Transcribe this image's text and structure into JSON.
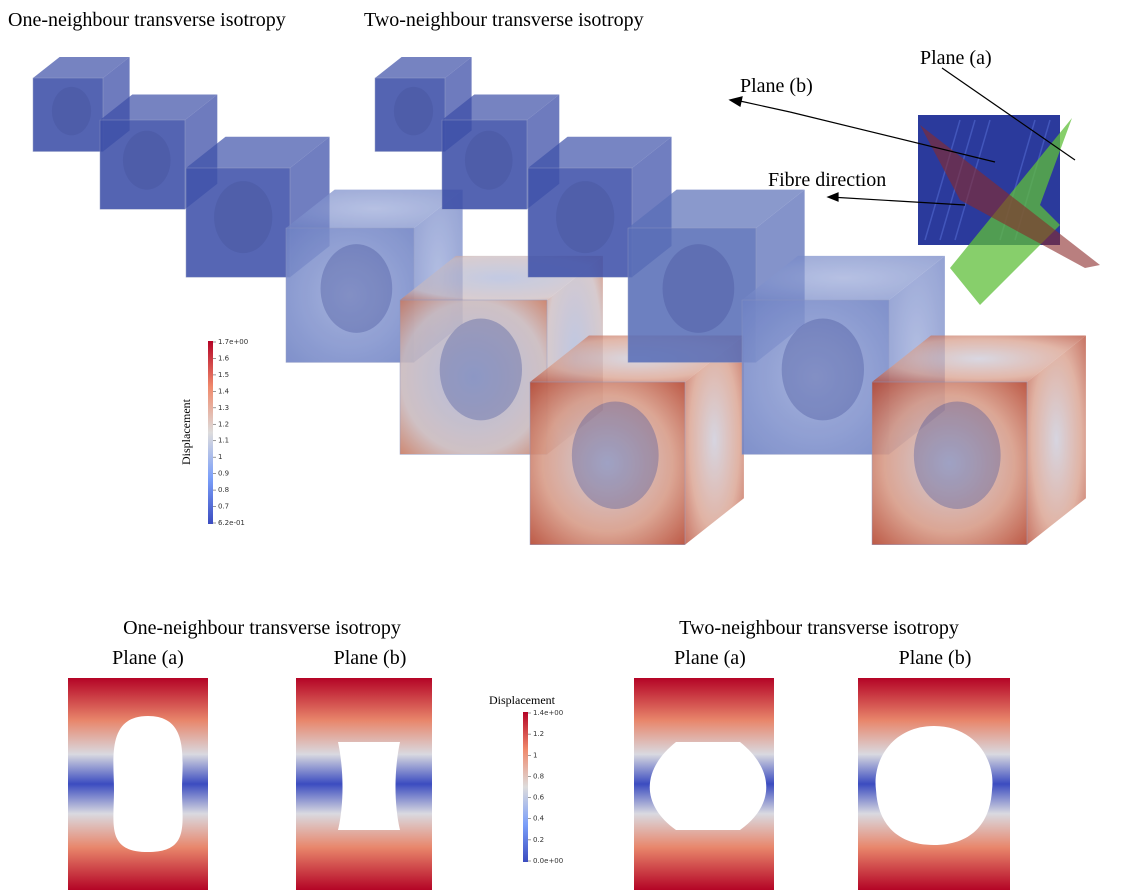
{
  "top": {
    "left_title": "One-neighbour transverse isotropy",
    "right_title": "Two-neighbour transverse isotropy",
    "colorbar": {
      "label": "Displacement",
      "ticks": [
        "1.7e+00",
        "1.6",
        "1.5",
        "1.4",
        "1.3",
        "1.2",
        "1.1",
        "1",
        "0.9",
        "0.8",
        "0.7",
        "6.2e-01"
      ]
    }
  },
  "inset": {
    "plane_a": "Plane (a)",
    "plane_b": "Plane (b)",
    "fibre": "Fibre direction"
  },
  "bottom": {
    "left": {
      "title": "One-neighbour transverse isotropy",
      "plane_a": "Plane (a)",
      "plane_b": "Plane (b)"
    },
    "right": {
      "title": "Two-neighbour transverse isotropy",
      "plane_a": "Plane (a)",
      "plane_b": "Plane (b)"
    },
    "colorbar": {
      "label": "Displacement",
      "ticks": [
        "1.4e+00",
        "1.2",
        "1",
        "0.8",
        "0.6",
        "0.4",
        "0.2",
        "0.0e+00"
      ]
    }
  }
}
